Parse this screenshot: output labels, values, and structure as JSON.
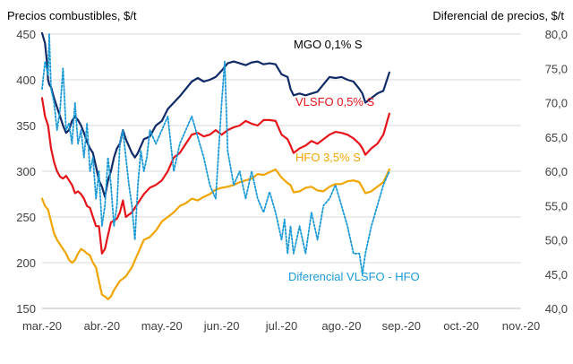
{
  "chart_data": {
    "type": "line",
    "left_axis_title": "Precios combustibles, $/t",
    "right_axis_title": "Diferencial de precios, $/t",
    "x_ticks": [
      "mar.-20",
      "abr.-20",
      "may.-20",
      "jun.-20",
      "jul.-20",
      "ago.-20",
      "sep.-20",
      "oct.-20",
      "nov.-20"
    ],
    "left_ticks": [
      "150",
      "200",
      "250",
      "300",
      "350",
      "400",
      "450"
    ],
    "right_ticks": [
      "40,0",
      "45,0",
      "50,0",
      "55,0",
      "60,0",
      "65,0",
      "70,0",
      "75,0",
      "80,0"
    ],
    "ylim_left": [
      150,
      450
    ],
    "ylim_right": [
      40,
      80
    ],
    "grid": true,
    "series": [
      {
        "name": "MGO 0,1% S",
        "axis": "left",
        "color": "#0f2a66",
        "dashed": false,
        "points": [
          [
            0,
            451
          ],
          [
            0.05,
            440
          ],
          [
            0.08,
            420
          ],
          [
            0.1,
            400
          ],
          [
            0.12,
            395
          ],
          [
            0.15,
            392
          ],
          [
            0.2,
            380
          ],
          [
            0.25,
            370
          ],
          [
            0.3,
            360
          ],
          [
            0.35,
            350
          ],
          [
            0.4,
            342
          ],
          [
            0.45,
            345
          ],
          [
            0.5,
            355
          ],
          [
            0.55,
            360
          ],
          [
            0.6,
            356
          ],
          [
            0.65,
            350
          ],
          [
            0.7,
            342
          ],
          [
            0.75,
            332
          ],
          [
            0.8,
            325
          ],
          [
            0.85,
            320
          ],
          [
            0.9,
            305
          ],
          [
            0.95,
            290
          ],
          [
            1.0,
            283
          ],
          [
            1.05,
            272
          ],
          [
            1.1,
            290
          ],
          [
            1.15,
            300
          ],
          [
            1.2,
            315
          ],
          [
            1.25,
            325
          ],
          [
            1.3,
            330
          ],
          [
            1.35,
            345
          ],
          [
            1.4,
            335
          ],
          [
            1.5,
            320
          ],
          [
            1.55,
            315
          ],
          [
            1.6,
            320
          ],
          [
            1.7,
            335
          ],
          [
            1.8,
            338
          ],
          [
            1.9,
            350
          ],
          [
            2.0,
            355
          ],
          [
            2.1,
            368
          ],
          [
            2.2,
            375
          ],
          [
            2.3,
            382
          ],
          [
            2.4,
            390
          ],
          [
            2.5,
            398
          ],
          [
            2.6,
            402
          ],
          [
            2.7,
            398
          ],
          [
            2.8,
            400
          ],
          [
            2.9,
            403
          ],
          [
            3.0,
            410
          ],
          [
            3.1,
            418
          ],
          [
            3.2,
            420
          ],
          [
            3.3,
            418
          ],
          [
            3.4,
            416
          ],
          [
            3.5,
            419
          ],
          [
            3.6,
            420
          ],
          [
            3.7,
            417
          ],
          [
            3.8,
            418
          ],
          [
            3.9,
            417
          ],
          [
            4.0,
            406
          ],
          [
            4.1,
            403
          ],
          [
            4.15,
            390
          ],
          [
            4.2,
            383
          ],
          [
            4.3,
            385
          ],
          [
            4.4,
            383
          ],
          [
            4.5,
            385
          ],
          [
            4.6,
            387
          ],
          [
            4.7,
            395
          ],
          [
            4.8,
            403
          ],
          [
            4.9,
            402
          ],
          [
            5.0,
            403
          ],
          [
            5.1,
            400
          ],
          [
            5.2,
            398
          ],
          [
            5.3,
            390
          ],
          [
            5.35,
            385
          ],
          [
            5.4,
            375
          ],
          [
            5.5,
            380
          ],
          [
            5.6,
            385
          ],
          [
            5.7,
            388
          ],
          [
            5.8,
            408
          ]
        ],
        "label": "MGO 0,1% S"
      },
      {
        "name": "VLSFO 0,5% S",
        "axis": "left",
        "color": "#e5141b",
        "dashed": false,
        "points": [
          [
            0,
            380
          ],
          [
            0.05,
            360
          ],
          [
            0.1,
            350
          ],
          [
            0.15,
            325
          ],
          [
            0.2,
            310
          ],
          [
            0.25,
            300
          ],
          [
            0.3,
            294
          ],
          [
            0.35,
            292
          ],
          [
            0.4,
            295
          ],
          [
            0.45,
            290
          ],
          [
            0.5,
            285
          ],
          [
            0.55,
            276
          ],
          [
            0.6,
            278
          ],
          [
            0.65,
            275
          ],
          [
            0.7,
            270
          ],
          [
            0.75,
            262
          ],
          [
            0.8,
            260
          ],
          [
            0.85,
            250
          ],
          [
            0.9,
            240
          ],
          [
            0.95,
            240
          ],
          [
            1.0,
            210
          ],
          [
            1.05,
            215
          ],
          [
            1.1,
            230
          ],
          [
            1.15,
            244
          ],
          [
            1.2,
            246
          ],
          [
            1.25,
            248
          ],
          [
            1.3,
            255
          ],
          [
            1.35,
            268
          ],
          [
            1.4,
            250
          ],
          [
            1.5,
            255
          ],
          [
            1.6,
            265
          ],
          [
            1.7,
            275
          ],
          [
            1.8,
            282
          ],
          [
            1.9,
            285
          ],
          [
            2.0,
            290
          ],
          [
            2.1,
            300
          ],
          [
            2.2,
            315
          ],
          [
            2.3,
            320
          ],
          [
            2.4,
            330
          ],
          [
            2.5,
            340
          ],
          [
            2.6,
            342
          ],
          [
            2.7,
            338
          ],
          [
            2.8,
            340
          ],
          [
            2.9,
            345
          ],
          [
            3.0,
            340
          ],
          [
            3.1,
            345
          ],
          [
            3.2,
            348
          ],
          [
            3.3,
            350
          ],
          [
            3.4,
            355
          ],
          [
            3.5,
            352
          ],
          [
            3.6,
            350
          ],
          [
            3.7,
            356
          ],
          [
            3.8,
            356
          ],
          [
            3.9,
            355
          ],
          [
            4.0,
            340
          ],
          [
            4.1,
            335
          ],
          [
            4.15,
            328
          ],
          [
            4.2,
            320
          ],
          [
            4.3,
            325
          ],
          [
            4.4,
            328
          ],
          [
            4.5,
            333
          ],
          [
            4.6,
            330
          ],
          [
            4.7,
            335
          ],
          [
            4.8,
            340
          ],
          [
            4.9,
            343
          ],
          [
            5.0,
            342
          ],
          [
            5.1,
            340
          ],
          [
            5.2,
            336
          ],
          [
            5.3,
            330
          ],
          [
            5.35,
            325
          ],
          [
            5.4,
            318
          ],
          [
            5.5,
            325
          ],
          [
            5.6,
            330
          ],
          [
            5.7,
            340
          ],
          [
            5.8,
            363
          ]
        ],
        "label": "VLSFO 0,5% S"
      },
      {
        "name": "HFO 3,5% S",
        "axis": "left",
        "color": "#f0a500",
        "dashed": false,
        "points": [
          [
            0,
            270
          ],
          [
            0.05,
            262
          ],
          [
            0.1,
            258
          ],
          [
            0.15,
            245
          ],
          [
            0.2,
            232
          ],
          [
            0.25,
            225
          ],
          [
            0.3,
            220
          ],
          [
            0.35,
            215
          ],
          [
            0.4,
            210
          ],
          [
            0.45,
            203
          ],
          [
            0.5,
            200
          ],
          [
            0.55,
            203
          ],
          [
            0.6,
            210
          ],
          [
            0.65,
            215
          ],
          [
            0.7,
            213
          ],
          [
            0.75,
            210
          ],
          [
            0.8,
            208
          ],
          [
            0.85,
            200
          ],
          [
            0.9,
            195
          ],
          [
            0.95,
            180
          ],
          [
            1.0,
            165
          ],
          [
            1.05,
            163
          ],
          [
            1.1,
            160
          ],
          [
            1.15,
            163
          ],
          [
            1.2,
            170
          ],
          [
            1.25,
            175
          ],
          [
            1.3,
            180
          ],
          [
            1.4,
            185
          ],
          [
            1.5,
            195
          ],
          [
            1.6,
            210
          ],
          [
            1.7,
            225
          ],
          [
            1.8,
            228
          ],
          [
            1.9,
            235
          ],
          [
            2.0,
            245
          ],
          [
            2.1,
            250
          ],
          [
            2.2,
            255
          ],
          [
            2.3,
            262
          ],
          [
            2.4,
            265
          ],
          [
            2.5,
            270
          ],
          [
            2.6,
            268
          ],
          [
            2.7,
            272
          ],
          [
            2.8,
            275
          ],
          [
            2.9,
            280
          ],
          [
            3.0,
            282
          ],
          [
            3.1,
            283
          ],
          [
            3.2,
            285
          ],
          [
            3.3,
            288
          ],
          [
            3.4,
            290
          ],
          [
            3.5,
            292
          ],
          [
            3.6,
            297
          ],
          [
            3.7,
            296
          ],
          [
            3.8,
            299
          ],
          [
            3.9,
            302
          ],
          [
            4.0,
            293
          ],
          [
            4.1,
            287
          ],
          [
            4.15,
            285
          ],
          [
            4.2,
            277
          ],
          [
            4.3,
            278
          ],
          [
            4.4,
            282
          ],
          [
            4.5,
            283
          ],
          [
            4.6,
            279
          ],
          [
            4.7,
            278
          ],
          [
            4.8,
            283
          ],
          [
            4.9,
            286
          ],
          [
            5.0,
            286
          ],
          [
            5.1,
            289
          ],
          [
            5.2,
            290
          ],
          [
            5.3,
            288
          ],
          [
            5.35,
            282
          ],
          [
            5.4,
            276
          ],
          [
            5.5,
            278
          ],
          [
            5.6,
            283
          ],
          [
            5.7,
            288
          ],
          [
            5.8,
            302
          ]
        ],
        "label": "HFO 3,5% S"
      },
      {
        "name": "Diferencial VLSFO - HFO",
        "axis": "right",
        "color": "#1b9ad6",
        "dashed": true,
        "points": [
          [
            0,
            72
          ],
          [
            0.05,
            76
          ],
          [
            0.1,
            74
          ],
          [
            0.12,
            80
          ],
          [
            0.15,
            72
          ],
          [
            0.2,
            70
          ],
          [
            0.25,
            66
          ],
          [
            0.3,
            69
          ],
          [
            0.35,
            75
          ],
          [
            0.4,
            66
          ],
          [
            0.45,
            67
          ],
          [
            0.5,
            64
          ],
          [
            0.55,
            70
          ],
          [
            0.6,
            64
          ],
          [
            0.65,
            66
          ],
          [
            0.7,
            62
          ],
          [
            0.75,
            67
          ],
          [
            0.8,
            60
          ],
          [
            0.85,
            62
          ],
          [
            0.9,
            56
          ],
          [
            0.95,
            60
          ],
          [
            1.0,
            52
          ],
          [
            1.05,
            55
          ],
          [
            1.1,
            62
          ],
          [
            1.15,
            58
          ],
          [
            1.2,
            52
          ],
          [
            1.25,
            55
          ],
          [
            1.3,
            64
          ],
          [
            1.35,
            66
          ],
          [
            1.4,
            62
          ],
          [
            1.45,
            58
          ],
          [
            1.5,
            55
          ],
          [
            1.55,
            50
          ],
          [
            1.6,
            58
          ],
          [
            1.65,
            63
          ],
          [
            1.7,
            60
          ],
          [
            1.75,
            62
          ],
          [
            1.8,
            66
          ],
          [
            1.9,
            64
          ],
          [
            2.0,
            66
          ],
          [
            2.1,
            68
          ],
          [
            2.2,
            60
          ],
          [
            2.3,
            64
          ],
          [
            2.4,
            66
          ],
          [
            2.5,
            68
          ],
          [
            2.6,
            65
          ],
          [
            2.7,
            62
          ],
          [
            2.8,
            58
          ],
          [
            2.9,
            56
          ],
          [
            3.0,
            70
          ],
          [
            3.05,
            76
          ],
          [
            3.1,
            63
          ],
          [
            3.2,
            58
          ],
          [
            3.3,
            60
          ],
          [
            3.4,
            56
          ],
          [
            3.5,
            60
          ],
          [
            3.6,
            56
          ],
          [
            3.7,
            54
          ],
          [
            3.8,
            57
          ],
          [
            3.9,
            54
          ],
          [
            4.0,
            50
          ],
          [
            4.05,
            53
          ],
          [
            4.1,
            48
          ],
          [
            4.15,
            52
          ],
          [
            4.2,
            48
          ],
          [
            4.3,
            52
          ],
          [
            4.4,
            48
          ],
          [
            4.5,
            54
          ],
          [
            4.6,
            50
          ],
          [
            4.7,
            55
          ],
          [
            4.8,
            56
          ],
          [
            4.9,
            58
          ],
          [
            5.0,
            55
          ],
          [
            5.1,
            52
          ],
          [
            5.2,
            48
          ],
          [
            5.3,
            48
          ],
          [
            5.35,
            45
          ],
          [
            5.4,
            48
          ],
          [
            5.5,
            52
          ],
          [
            5.6,
            55
          ],
          [
            5.7,
            58
          ],
          [
            5.8,
            60
          ]
        ],
        "label": "Diferencial VLSFO - HFO"
      }
    ]
  }
}
